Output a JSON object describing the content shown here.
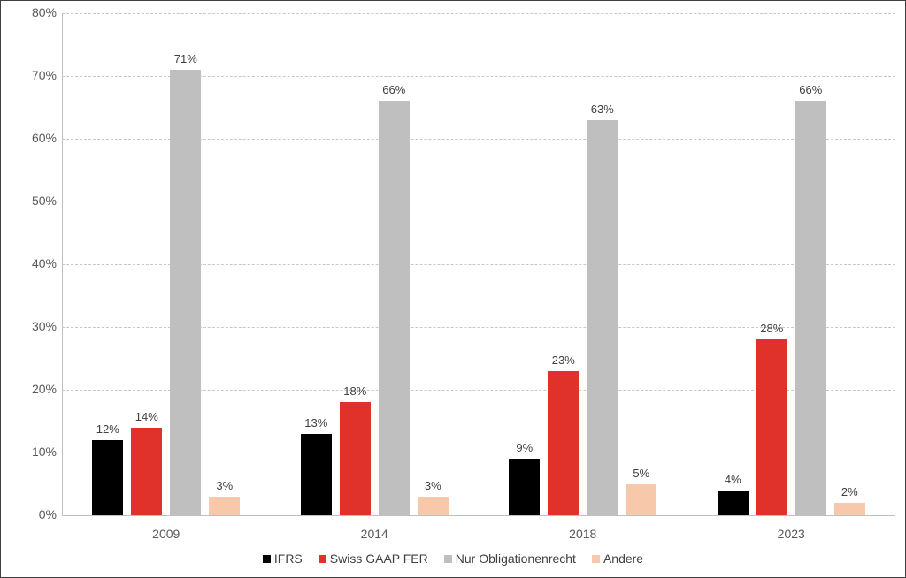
{
  "chart_data": {
    "type": "bar",
    "title": "",
    "xlabel": "",
    "ylabel": "",
    "ylim": [
      0,
      80
    ],
    "yticks": [
      "0%",
      "10%",
      "20%",
      "30%",
      "40%",
      "50%",
      "60%",
      "70%",
      "80%"
    ],
    "grid": true,
    "legend_position": "bottom",
    "categories": [
      "2009",
      "2014",
      "2018",
      "2023"
    ],
    "series": [
      {
        "name": "IFRS",
        "color": "#000000",
        "values": [
          12,
          13,
          9,
          4
        ],
        "labels": [
          "12%",
          "13%",
          "9%",
          "4%"
        ]
      },
      {
        "name": "Swiss GAAP FER",
        "color": "#e0312b",
        "values": [
          14,
          18,
          23,
          28
        ],
        "labels": [
          "14%",
          "18%",
          "23%",
          "28%"
        ]
      },
      {
        "name": "Nur Obligationenrecht",
        "color": "#bfbfbf",
        "values": [
          71,
          66,
          63,
          66
        ],
        "labels": [
          "71%",
          "66%",
          "63%",
          "66%"
        ]
      },
      {
        "name": "Andere",
        "color": "#f8c8aa",
        "values": [
          3,
          3,
          5,
          2
        ],
        "labels": [
          "3%",
          "3%",
          "5%",
          "2%"
        ]
      }
    ]
  }
}
